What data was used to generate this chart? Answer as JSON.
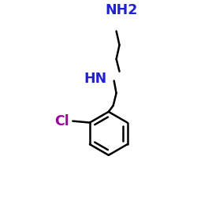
{
  "background_color": "#ffffff",
  "bond_color": "#000000",
  "N_color": "#2222cc",
  "Cl_color": "#990099",
  "line_width": 1.8,
  "NH2_label": "NH2",
  "NH_label": "HN",
  "Cl_label": "Cl",
  "figsize": [
    2.5,
    2.5
  ],
  "dpi": 100
}
